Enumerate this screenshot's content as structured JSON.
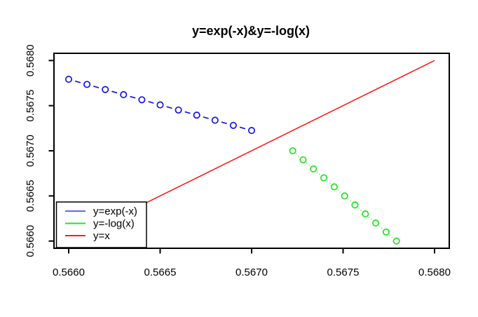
{
  "page": {
    "background": "#ffffff"
  },
  "chart_data": {
    "type": "line",
    "title": "y=exp(-x)&y=-log(x)",
    "xlabel": "",
    "ylabel": "",
    "xlim": [
      0.566,
      0.568
    ],
    "ylim": [
      0.566,
      0.568
    ],
    "x_ticks": [
      "0.5660",
      "0.5665",
      "0.5670",
      "0.5675",
      "0.5680"
    ],
    "y_ticks": [
      "0.5660",
      "0.5665",
      "0.5670",
      "0.5675",
      "0.5680"
    ],
    "grid": false,
    "axis_color": "#000000",
    "plot_bg": "#ffffff",
    "series": [
      {
        "id": "exp",
        "name": "y=exp(-x)",
        "color": "#1414e6",
        "marker": "circle",
        "line_style": "dashed",
        "points": [
          [
            0.566,
            0.567792
          ],
          [
            0.5661,
            0.5677353
          ],
          [
            0.5662,
            0.5676785
          ],
          [
            0.5663,
            0.5676218
          ],
          [
            0.5664,
            0.567565
          ],
          [
            0.5665,
            0.5675083
          ],
          [
            0.5666,
            0.5674515
          ],
          [
            0.5667,
            0.5673948
          ],
          [
            0.5668,
            0.5673381
          ],
          [
            0.5669,
            0.5672813
          ],
          [
            0.567,
            0.5672246
          ]
        ]
      },
      {
        "id": "neglog",
        "name": "y=-log(x)",
        "color": "#21e421",
        "marker": "circle",
        "line_style": "dotted",
        "points": [
          [
            0.5672246,
            0.567
          ],
          [
            0.5672813,
            0.5669
          ],
          [
            0.5673381,
            0.5668
          ],
          [
            0.5673948,
            0.5667
          ],
          [
            0.5674515,
            0.5666
          ],
          [
            0.5675083,
            0.5665
          ],
          [
            0.567565,
            0.5664
          ],
          [
            0.5676218,
            0.5663
          ],
          [
            0.5676785,
            0.5662
          ],
          [
            0.5677353,
            0.5661
          ],
          [
            0.567792,
            0.566
          ]
        ]
      },
      {
        "id": "identity",
        "name": "y=x",
        "color": "#ff1a1a",
        "marker": "none",
        "line_style": "solid",
        "points": [
          [
            0.566,
            0.566
          ],
          [
            0.568,
            0.568
          ]
        ]
      }
    ],
    "legend": {
      "position": "bottom-left",
      "entries": [
        {
          "label": "y=exp(-x)",
          "color": "#6666f0"
        },
        {
          "label": "y=-log(x)",
          "color": "#21e421"
        },
        {
          "label": "y=x",
          "color": "#ff1a1a"
        }
      ]
    }
  }
}
